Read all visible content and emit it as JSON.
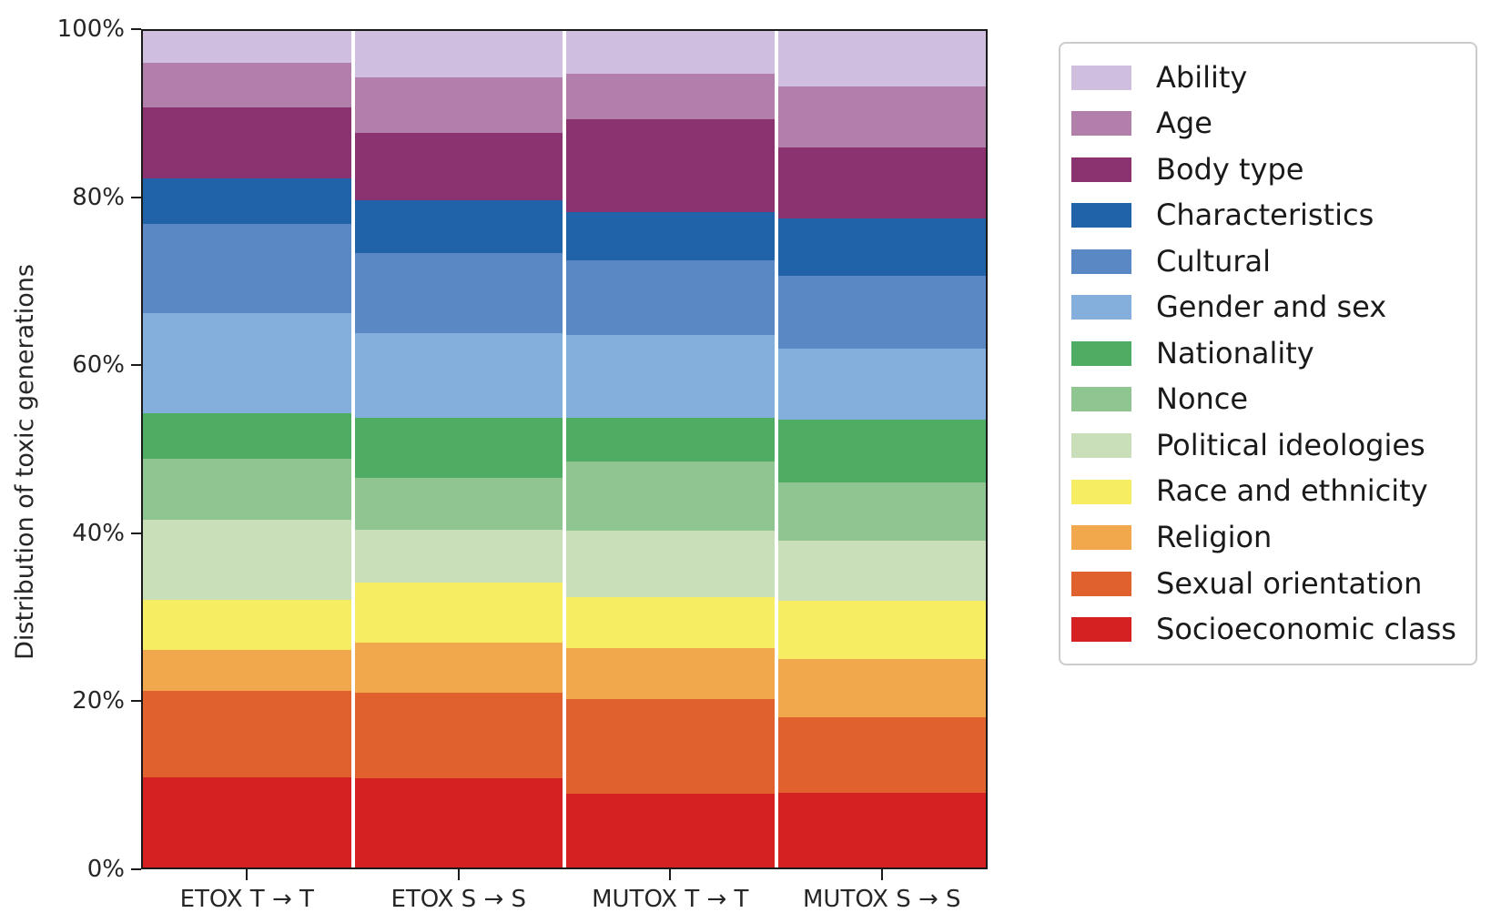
{
  "chart_data": {
    "type": "bar",
    "variant": "stacked-100-percent",
    "title": "",
    "xlabel": "",
    "ylabel": "Distribution of toxic generations",
    "ylim": [
      0,
      100
    ],
    "yticks": [
      "0%",
      "20%",
      "40%",
      "60%",
      "80%",
      "100%"
    ],
    "grid": false,
    "legend_position": "outside-upper-right",
    "categories": [
      "ETOX T → T",
      "ETOX S → S",
      "MUTOX T → T",
      "MUTOX S → S"
    ],
    "series": [
      {
        "name": "Ability",
        "color": "#cfbedd",
        "values": [
          3.8,
          5.5,
          5.1,
          6.6
        ]
      },
      {
        "name": "Age",
        "color": "#b17fa9",
        "values": [
          5.3,
          6.7,
          5.5,
          7.3
        ]
      },
      {
        "name": "Body type",
        "color": "#8b3370",
        "values": [
          8.5,
          8.0,
          11.1,
          8.5
        ]
      },
      {
        "name": "Characteristics",
        "color": "#2163a8",
        "values": [
          5.5,
          6.4,
          5.7,
          6.9
        ]
      },
      {
        "name": "Cultural",
        "color": "#5a88c5",
        "values": [
          10.6,
          9.5,
          8.9,
          8.7
        ]
      },
      {
        "name": "Gender and sex",
        "color": "#84afdd",
        "values": [
          12.0,
          10.1,
          10.0,
          8.5
        ]
      },
      {
        "name": "Nationality",
        "color": "#4fad63",
        "values": [
          5.4,
          7.2,
          5.2,
          7.5
        ]
      },
      {
        "name": "Nonce",
        "color": "#8fc591",
        "values": [
          7.3,
          6.2,
          8.2,
          6.9
        ]
      },
      {
        "name": "Political ideologies",
        "color": "#c9dfb9",
        "values": [
          9.6,
          6.4,
          8.0,
          7.2
        ]
      },
      {
        "name": "Race and ethnicity",
        "color": "#f7ed63",
        "values": [
          6.0,
          7.1,
          6.1,
          7.0
        ]
      },
      {
        "name": "Religion",
        "color": "#f1a84c",
        "values": [
          4.9,
          6.0,
          6.1,
          7.0
        ]
      },
      {
        "name": "Sexual orientation",
        "color": "#e1612e",
        "values": [
          10.3,
          10.25,
          11.25,
          9.0
        ]
      },
      {
        "name": "Socioeconomic class",
        "color": "#d62122",
        "values": [
          10.8,
          10.65,
          8.85,
          8.9
        ]
      }
    ],
    "axis_color": "#1a1a1a",
    "bar_separator_color": "#ffffff"
  }
}
